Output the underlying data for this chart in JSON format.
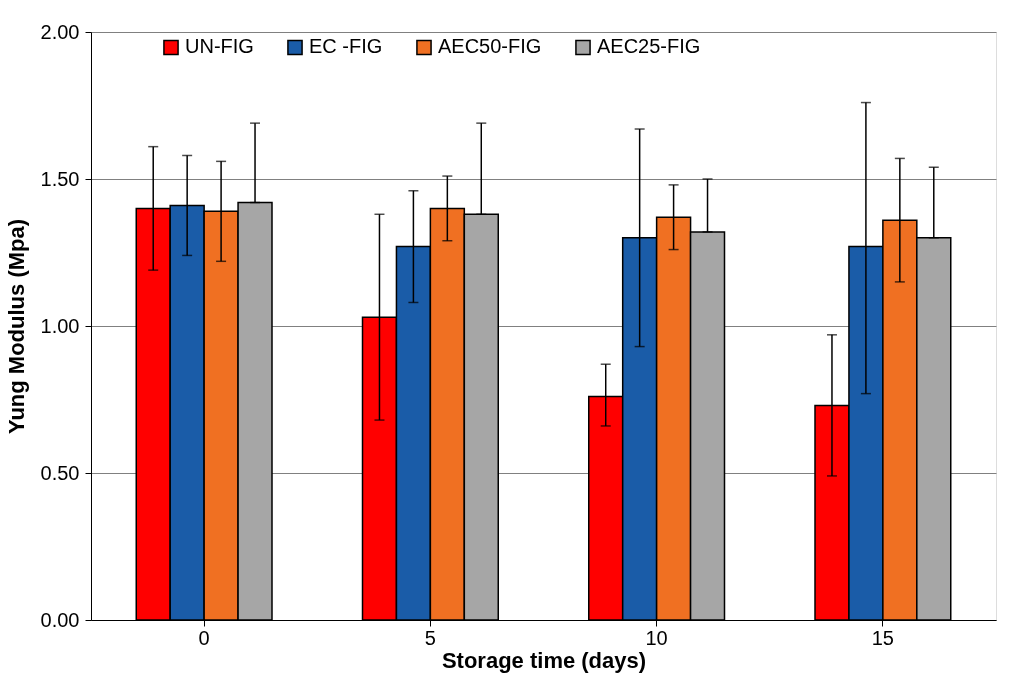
{
  "chart_data": {
    "type": "bar",
    "xlabel": "Storage time (days)",
    "ylabel": "Yung Modulus (Mpa)",
    "categories": [
      "0",
      "5",
      "10",
      "15"
    ],
    "series": [
      {
        "name": "UN-FIG",
        "color": "#ff0000",
        "values": [
          1.4,
          1.03,
          0.76,
          0.73
        ],
        "errors": [
          [
            1.19,
            1.61
          ],
          [
            0.68,
            1.38
          ],
          [
            0.66,
            0.87
          ],
          [
            0.49,
            0.97
          ]
        ]
      },
      {
        "name": "EC -FIG",
        "color": "#1a5ca8",
        "values": [
          1.41,
          1.27,
          1.3,
          1.27
        ],
        "errors": [
          [
            1.24,
            1.58
          ],
          [
            1.08,
            1.46
          ],
          [
            0.93,
            1.67
          ],
          [
            0.77,
            1.76
          ]
        ]
      },
      {
        "name": "AEC50-FIG",
        "color": "#f07022",
        "values": [
          1.39,
          1.4,
          1.37,
          1.36
        ],
        "errors": [
          [
            1.22,
            1.56
          ],
          [
            1.29,
            1.51
          ],
          [
            1.26,
            1.48
          ],
          [
            1.15,
            1.57
          ]
        ]
      },
      {
        "name": "AEC25-FIG",
        "color": "#a6a6a6",
        "values": [
          1.42,
          1.38,
          1.32,
          1.3
        ],
        "errors": [
          [
            1.42,
            1.69
          ],
          [
            1.38,
            1.69
          ],
          [
            1.32,
            1.5
          ],
          [
            1.3,
            1.54
          ]
        ]
      }
    ],
    "ylim": [
      0,
      2
    ],
    "yticks": [
      {
        "value": 0,
        "label": "0.00"
      },
      {
        "value": 0.5,
        "label": "0.50"
      },
      {
        "value": 1,
        "label": "1.00"
      },
      {
        "value": 1.5,
        "label": "1.50"
      },
      {
        "value": 2,
        "label": "2.00"
      }
    ],
    "grid": "y",
    "legend": "top"
  }
}
